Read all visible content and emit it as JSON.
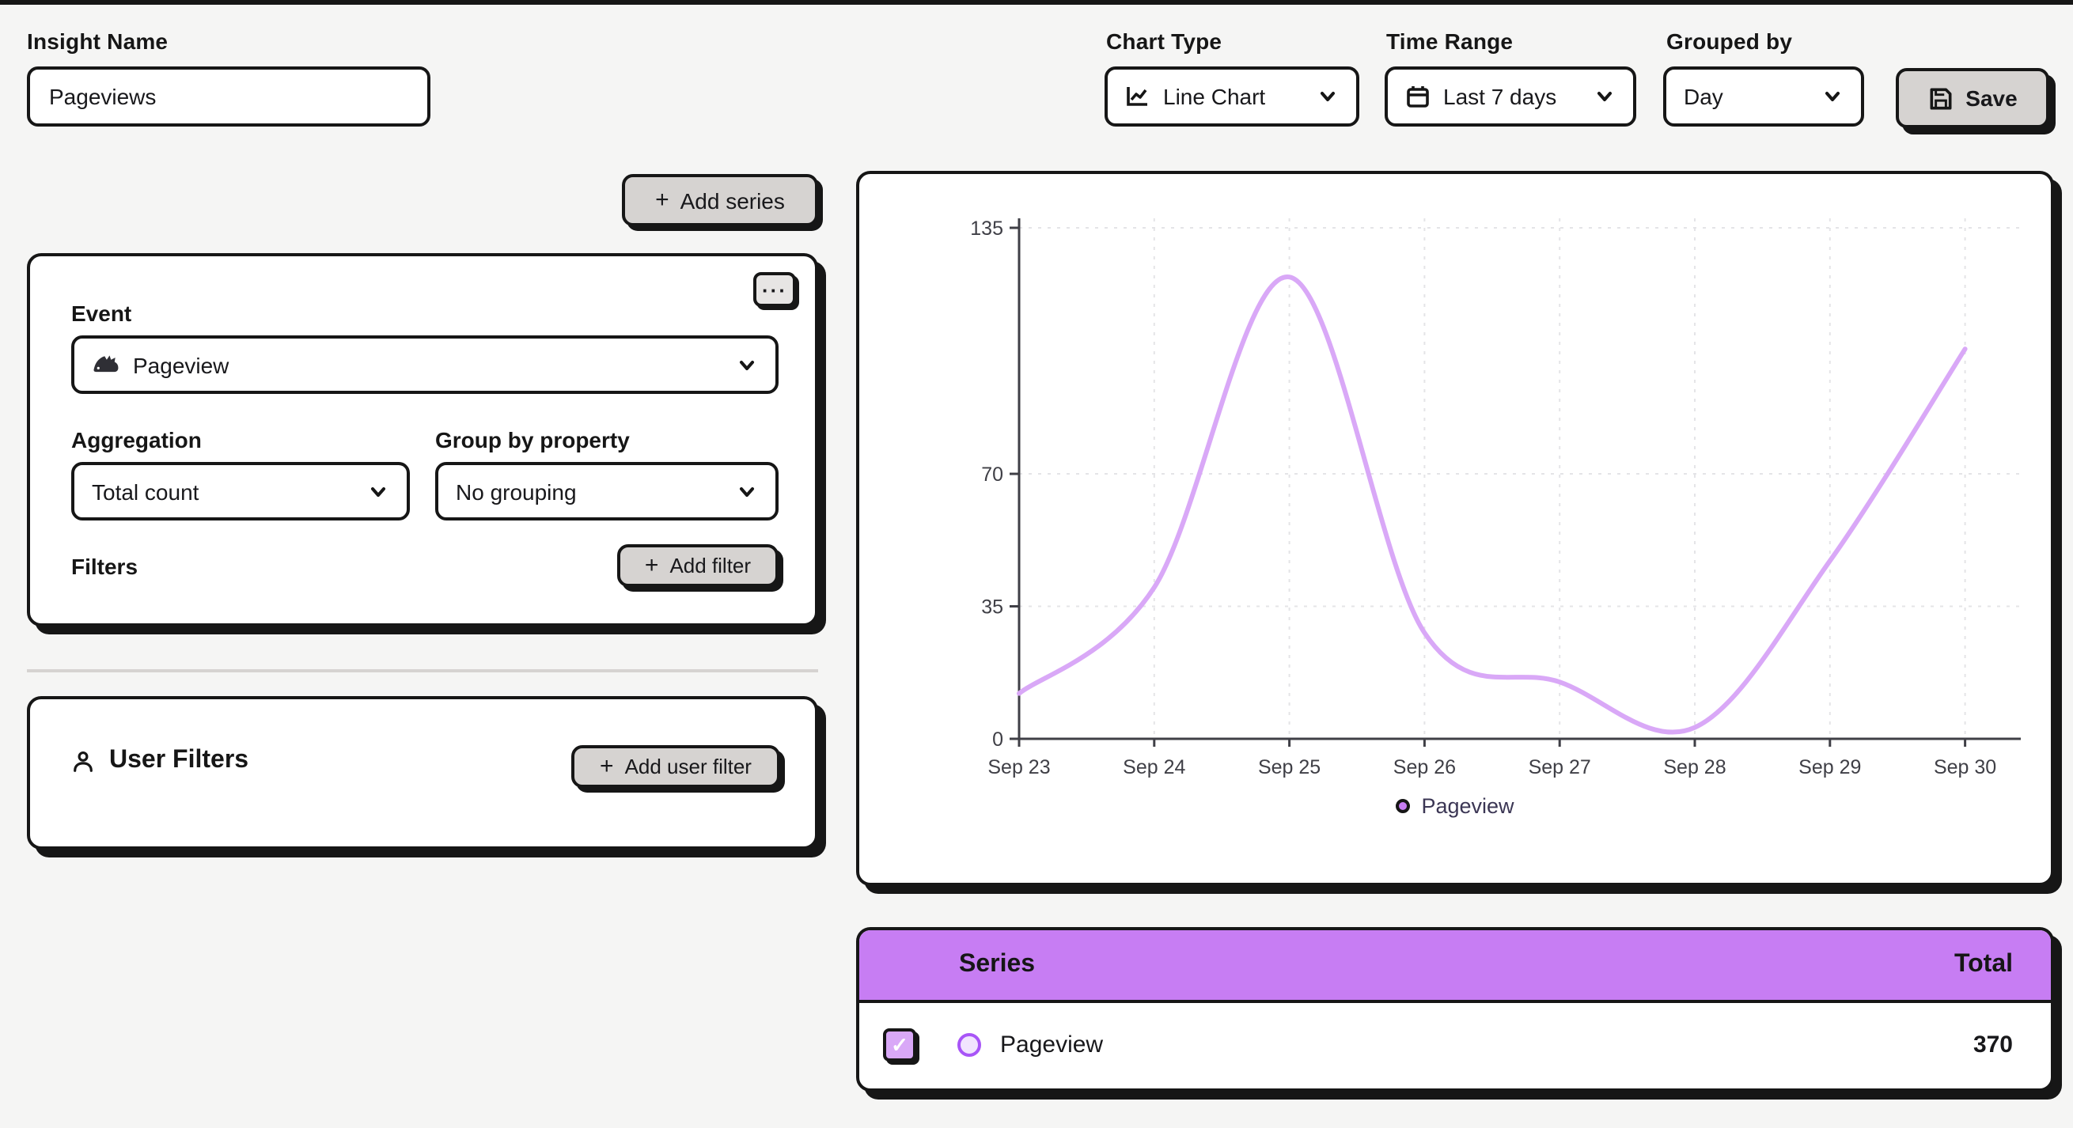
{
  "header": {
    "insight_name_label": "Insight Name",
    "insight_name_value": "Pageviews",
    "chart_type_label": "Chart Type",
    "chart_type_value": "Line Chart",
    "time_range_label": "Time Range",
    "time_range_value": "Last 7 days",
    "grouped_by_label": "Grouped by",
    "grouped_by_value": "Day",
    "save_label": "Save"
  },
  "series_builder": {
    "add_series_label": "Add series",
    "more_icon": "···",
    "event_label": "Event",
    "event_value": "Pageview",
    "aggregation_label": "Aggregation",
    "aggregation_value": "Total count",
    "group_by_label": "Group by property",
    "group_by_value": "No grouping",
    "filters_label": "Filters",
    "add_filter_label": "Add filter"
  },
  "user_filters": {
    "title": "User Filters",
    "add_user_filter_label": "Add user filter"
  },
  "chart_data": {
    "type": "line",
    "title": "",
    "xlabel": "",
    "ylabel": "",
    "x": [
      "Sep 23",
      "Sep 24",
      "Sep 25",
      "Sep 26",
      "Sep 27",
      "Sep 28",
      "Sep 29",
      "Sep 30"
    ],
    "series": [
      {
        "name": "Pageview",
        "values": [
          12,
          40,
          122,
          28,
          15,
          3,
          47,
          103
        ],
        "color": "#d9a8f7"
      }
    ],
    "ylim": [
      0,
      135
    ],
    "y_ticks": [
      0,
      35,
      70,
      135
    ],
    "grid": true,
    "legend": {
      "label": "Pageview",
      "position": "bottom"
    }
  },
  "table": {
    "header": {
      "series": "Series",
      "total": "Total"
    },
    "rows": [
      {
        "checked": true,
        "name": "Pageview",
        "total": "370"
      }
    ]
  },
  "colors": {
    "accent_purple": "#c77df3",
    "line_purple": "#d9a8f7",
    "button_gray": "#d6d3d1",
    "border_black": "#161616",
    "page_bg": "#f5f5f4"
  }
}
